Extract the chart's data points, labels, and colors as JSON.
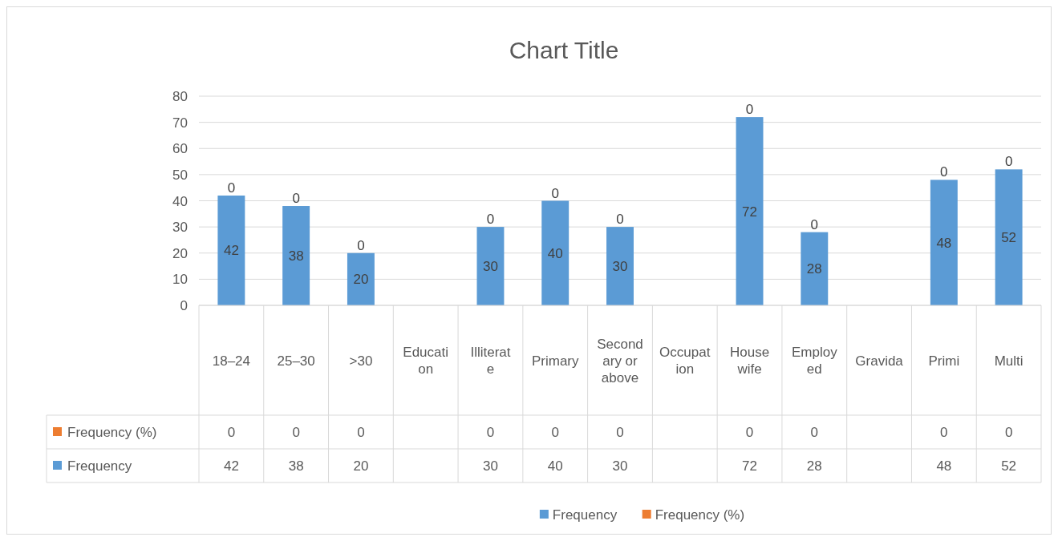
{
  "chart_data": {
    "type": "bar",
    "title": "Chart Title",
    "stacked": true,
    "data_labels": true,
    "grid": "y",
    "legend": "bottom",
    "categories": [
      "18–24",
      "25–30",
      ">30",
      "Education",
      "Illiterate",
      "Primary",
      "Secondary or above",
      "Occupation",
      "House wife",
      "Employed",
      "Gravida",
      "Primi",
      "Multi"
    ],
    "series": [
      {
        "name": "Frequency",
        "color": "#5b9bd5",
        "values": [
          42,
          38,
          20,
          null,
          30,
          40,
          30,
          null,
          72,
          28,
          null,
          48,
          52
        ],
        "value_labels": [
          "42",
          "38",
          "20",
          null,
          "30",
          "40",
          "30",
          null,
          "72",
          "28",
          null,
          "48",
          "52"
        ]
      },
      {
        "name": "Frequency (%)",
        "color": "#ed7d31",
        "values": [
          0,
          0,
          0,
          null,
          0,
          0,
          0,
          null,
          0,
          0,
          null,
          0,
          0
        ],
        "value_labels": [
          "0",
          "0",
          "0",
          null,
          "0",
          "0",
          "0",
          null,
          "0",
          "0",
          null,
          "0",
          "0"
        ]
      }
    ],
    "ylim": [
      0,
      80
    ],
    "yticks": [
      0,
      10,
      20,
      30,
      40,
      50,
      60,
      70,
      80
    ]
  }
}
